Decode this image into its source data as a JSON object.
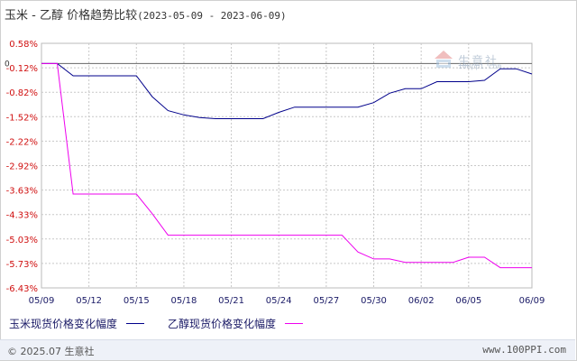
{
  "title": {
    "main": "玉米 - 乙醇 价格趋势比较",
    "range": "(2023-05-09 - 2023-06-09)"
  },
  "watermark": {
    "text": "生意社",
    "sub": "100ppi.com"
  },
  "footer": {
    "copyright": "© 2025.07 生意社",
    "site": "www.100PPI.com"
  },
  "chart_data": {
    "type": "line",
    "x": [
      "05/09",
      "05/10",
      "05/11",
      "05/12",
      "05/13",
      "05/14",
      "05/15",
      "05/16",
      "05/17",
      "05/18",
      "05/19",
      "05/20",
      "05/21",
      "05/22",
      "05/23",
      "05/24",
      "05/25",
      "05/26",
      "05/27",
      "05/28",
      "05/29",
      "05/30",
      "05/31",
      "06/01",
      "06/02",
      "06/03",
      "06/04",
      "06/05",
      "06/06",
      "06/07",
      "06/08",
      "06/09"
    ],
    "xticks": [
      "05/09",
      "05/12",
      "05/15",
      "05/18",
      "05/21",
      "05/24",
      "05/27",
      "05/30",
      "06/02",
      "06/05",
      "06/09"
    ],
    "yticks": [
      "0.58%",
      "-0.12%",
      "-0.82%",
      "-1.52%",
      "-2.22%",
      "-2.92%",
      "-3.63%",
      "-4.33%",
      "-5.03%",
      "-5.73%",
      "-6.43%"
    ],
    "ylim": [
      -6.43,
      0.58
    ],
    "zero_label": "0",
    "grid": true,
    "series": [
      {
        "name": "玉米现货价格变化幅度",
        "color": "#00008b",
        "values": [
          0,
          0,
          -0.35,
          -0.35,
          -0.35,
          -0.35,
          -0.35,
          -0.95,
          -1.35,
          -1.47,
          -1.55,
          -1.58,
          -1.58,
          -1.58,
          -1.58,
          -1.4,
          -1.25,
          -1.25,
          -1.25,
          -1.25,
          -1.25,
          -1.12,
          -0.85,
          -0.72,
          -0.72,
          -0.52,
          -0.52,
          -0.52,
          -0.48,
          -0.15,
          -0.15,
          -0.3
        ]
      },
      {
        "name": "乙醇现货价格变化幅度",
        "color": "#ee00ee",
        "values": [
          0,
          0,
          -3.74,
          -3.74,
          -3.74,
          -3.74,
          -3.74,
          -4.3,
          -4.92,
          -4.92,
          -4.92,
          -4.92,
          -4.92,
          -4.92,
          -4.92,
          -4.92,
          -4.92,
          -4.92,
          -4.92,
          -4.92,
          -5.4,
          -5.6,
          -5.6,
          -5.7,
          -5.7,
          -5.7,
          -5.7,
          -5.55,
          -5.55,
          -5.85,
          -5.85,
          -5.85
        ]
      }
    ]
  }
}
